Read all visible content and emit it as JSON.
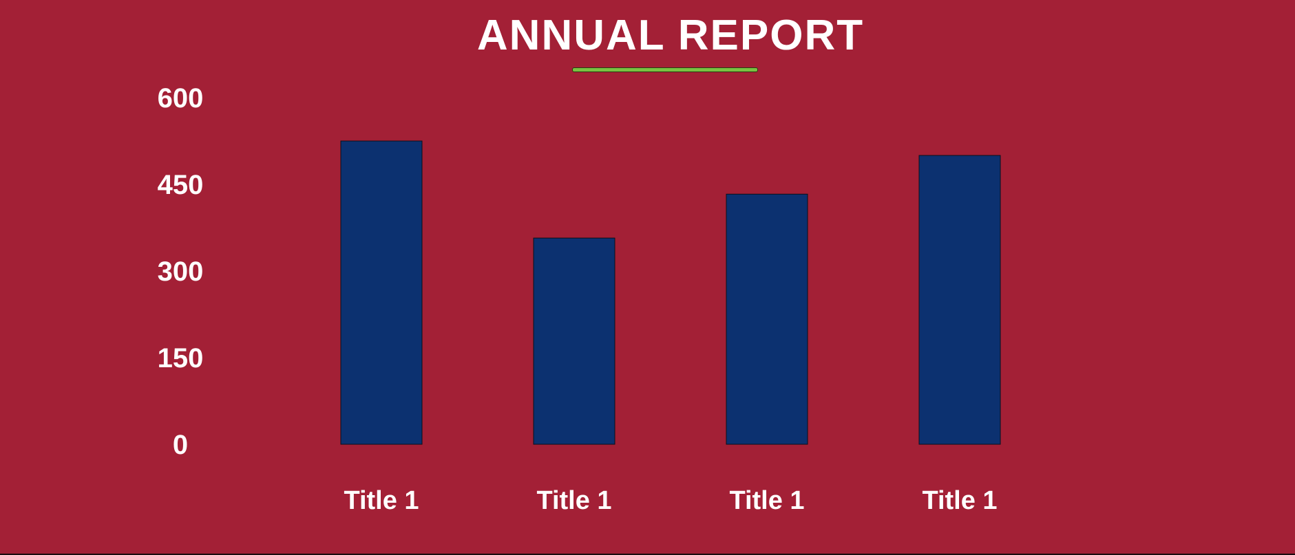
{
  "colors": {
    "background": "#a32036",
    "bar": "#0c3170",
    "text": "#ffffff",
    "underline": "#7ac142"
  },
  "chart_data": {
    "type": "bar",
    "title": "ANNUAL REPORT",
    "categories": [
      "Title 1",
      "Title 1",
      "Title 1",
      "Title 1"
    ],
    "values": [
      525,
      357,
      433,
      500
    ],
    "yticks": [
      "0",
      "150",
      "300",
      "450",
      "600"
    ],
    "ylim": [
      0,
      600
    ],
    "xlabel": "",
    "ylabel": "",
    "grid": false,
    "legend": "none"
  }
}
